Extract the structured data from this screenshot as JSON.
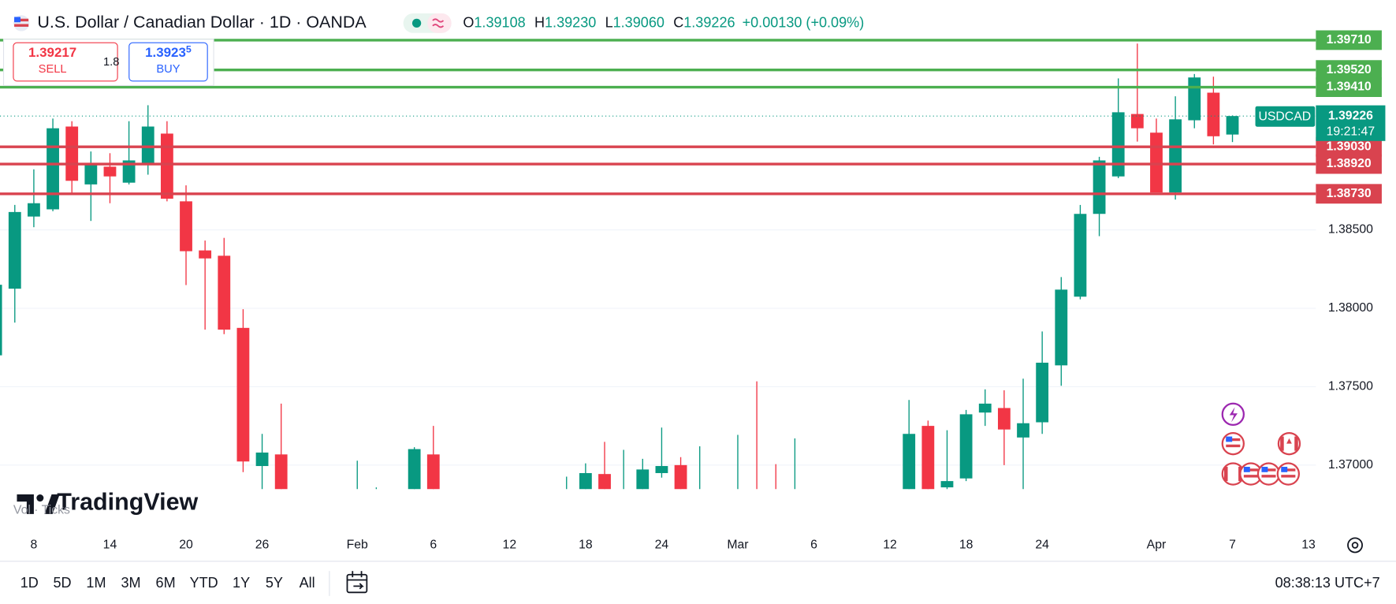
{
  "header": {
    "title": "U.S. Dollar / Canadian Dollar · 1D · OANDA",
    "ohlc": [
      {
        "key": "O",
        "value": "1.39108"
      },
      {
        "key": "H",
        "value": "1.39230"
      },
      {
        "key": "L",
        "value": "1.39060"
      },
      {
        "key": "C",
        "value": "1.39226"
      }
    ],
    "change": "+0.00130 (+0.09%)"
  },
  "trade": {
    "sell_price": "1.39217",
    "sell_label": "SELL",
    "spread": "1.8",
    "buy_price": "1.3923",
    "buy_price_last_digit": "5",
    "buy_label": "BUY"
  },
  "chart_data": {
    "type": "candlestick",
    "symbol": "USDCAD",
    "up_color": "#089981",
    "down_color": "#f23645",
    "categories": [
      null,
      null,
      "8",
      null,
      null,
      null,
      "14",
      null,
      null,
      null,
      "20",
      null,
      null,
      null,
      "26",
      null,
      null,
      null,
      null,
      "Feb",
      null,
      null,
      null,
      "6",
      null,
      null,
      null,
      "12",
      null,
      null,
      null,
      "18",
      null,
      null,
      null,
      "24",
      null,
      null,
      null,
      "Mar",
      null,
      null,
      null,
      "6",
      null,
      null,
      null,
      "12",
      null,
      null,
      null,
      "18",
      null,
      null,
      null,
      "24",
      null,
      null,
      null,
      null,
      null,
      "Apr",
      null,
      null,
      null,
      "7",
      null,
      null,
      null,
      "13"
    ],
    "open": [
      1.377,
      1.38125,
      1.38585,
      1.38631,
      1.39159,
      1.3879,
      1.38903,
      1.38801,
      1.38926,
      1.39114,
      1.38682,
      1.38369,
      1.38335,
      1.37875,
      1.36994,
      1.37068,
      null,
      null,
      null,
      1.3675,
      1.3676,
      null,
      1.368,
      1.37068,
      null,
      null,
      null,
      null,
      null,
      null,
      1.3672,
      1.3682,
      1.36943,
      1.3675,
      1.3683,
      1.36949,
      1.37,
      1.3675,
      null,
      1.3672,
      1.3682,
      1.368,
      1.3672,
      null,
      null,
      null,
      null,
      null,
      1.3682,
      1.3725,
      1.36858,
      1.36915,
      1.37335,
      1.37364,
      1.37176,
      1.37273,
      1.37636,
      1.38074,
      1.38602,
      1.38841,
      1.39239,
      1.3912,
      1.38739,
      1.39199,
      1.39375,
      1.39108,
      null,
      null,
      null,
      null
    ],
    "high": [
      1.3818,
      1.38659,
      1.38886,
      1.3921,
      1.39193,
      1.39,
      1.38989,
      1.39193,
      1.39295,
      1.39193,
      1.38784,
      1.38432,
      1.38449,
      1.37994,
      1.37199,
      1.37392,
      null,
      null,
      null,
      1.37028,
      1.36858,
      null,
      1.37114,
      1.3725,
      null,
      null,
      null,
      null,
      null,
      null,
      1.36926,
      1.37011,
      1.37148,
      1.37097,
      1.3704,
      1.37239,
      1.37051,
      1.3712,
      null,
      1.37193,
      1.37534,
      1.37006,
      1.3717,
      null,
      null,
      null,
      null,
      null,
      1.37415,
      1.37284,
      1.37222,
      1.37352,
      1.37483,
      1.37477,
      1.37551,
      1.37852,
      1.38199,
      1.38659,
      1.38966,
      1.39466,
      1.39688,
      1.3921,
      1.39352,
      1.39494,
      1.39477,
      1.3923,
      null,
      null,
      null,
      null
    ],
    "low": [
      1.3765,
      1.37909,
      1.38517,
      1.38619,
      1.38727,
      1.38557,
      1.3867,
      1.3879,
      1.38852,
      1.38682,
      1.38148,
      1.37864,
      1.37835,
      1.36955,
      1.3682,
      1.3675,
      null,
      null,
      null,
      1.3665,
      1.3668,
      null,
      1.3675,
      1.3672,
      null,
      null,
      null,
      null,
      null,
      null,
      1.3665,
      1.3678,
      1.3676,
      1.3668,
      1.3678,
      1.3692,
      1.3678,
      1.3668,
      null,
      1.3665,
      1.3668,
      1.3665,
      1.3665,
      null,
      null,
      null,
      null,
      null,
      1.3676,
      1.3674,
      1.3682,
      1.36898,
      1.3725,
      1.37,
      1.3683,
      1.37199,
      1.37506,
      1.38057,
      1.3846,
      1.3883,
      1.39063,
      1.38739,
      1.38693,
      1.39148,
      1.39045,
      1.3906,
      null,
      null,
      null,
      null
    ],
    "close": [
      1.3815,
      1.38614,
      1.3867,
      1.39148,
      1.38813,
      1.38915,
      1.38841,
      1.38943,
      1.39159,
      1.38699,
      1.38364,
      1.38318,
      1.37864,
      1.37023,
      1.3708,
      1.368,
      null,
      null,
      null,
      1.368,
      1.368,
      null,
      1.37102,
      1.3678,
      null,
      null,
      null,
      null,
      null,
      null,
      1.368,
      1.36949,
      1.3682,
      1.3682,
      1.36972,
      1.36994,
      1.3682,
      1.3681,
      null,
      1.368,
      1.3675,
      1.3672,
      1.368,
      null,
      null,
      null,
      null,
      null,
      1.37199,
      1.368,
      1.36898,
      1.37324,
      1.37392,
      1.37227,
      1.37267,
      1.37653,
      1.38119,
      1.38602,
      1.38943,
      1.3925,
      1.39148,
      1.38739,
      1.39205,
      1.39472,
      1.39097,
      1.39226,
      null,
      null,
      null,
      null
    ],
    "ylim": [
      1.36847,
      1.39966
    ],
    "yticks": [
      {
        "value": 1.37,
        "label": "1.37000"
      },
      {
        "value": 1.375,
        "label": "1.37500"
      },
      {
        "value": 1.38,
        "label": "1.38000"
      },
      {
        "value": 1.385,
        "label": "1.38500"
      }
    ],
    "grid": true,
    "levels": [
      {
        "value": 1.3971,
        "label": "1.39710",
        "color": "#4caf50"
      },
      {
        "value": 1.3952,
        "label": "1.39520",
        "color": "#4caf50"
      },
      {
        "value": 1.3941,
        "label": "1.39410",
        "color": "#4caf50"
      },
      {
        "value": 1.3903,
        "label": "1.39030",
        "color": "#d9434f"
      },
      {
        "value": 1.3892,
        "label": "1.38920",
        "color": "#d9434f"
      },
      {
        "value": 1.3873,
        "label": "1.38730",
        "color": "#d9434f"
      }
    ],
    "last_price": {
      "value": 1.39226,
      "label": "1.39226"
    },
    "countdown": "19:21:47",
    "legend": "Vol · Ticks",
    "watermark": "TradingView"
  },
  "toolbar": {
    "ranges": [
      "1D",
      "5D",
      "1M",
      "3M",
      "6M",
      "YTD",
      "1Y",
      "5Y",
      "All"
    ],
    "time": "08:38:13 UTC+7"
  }
}
